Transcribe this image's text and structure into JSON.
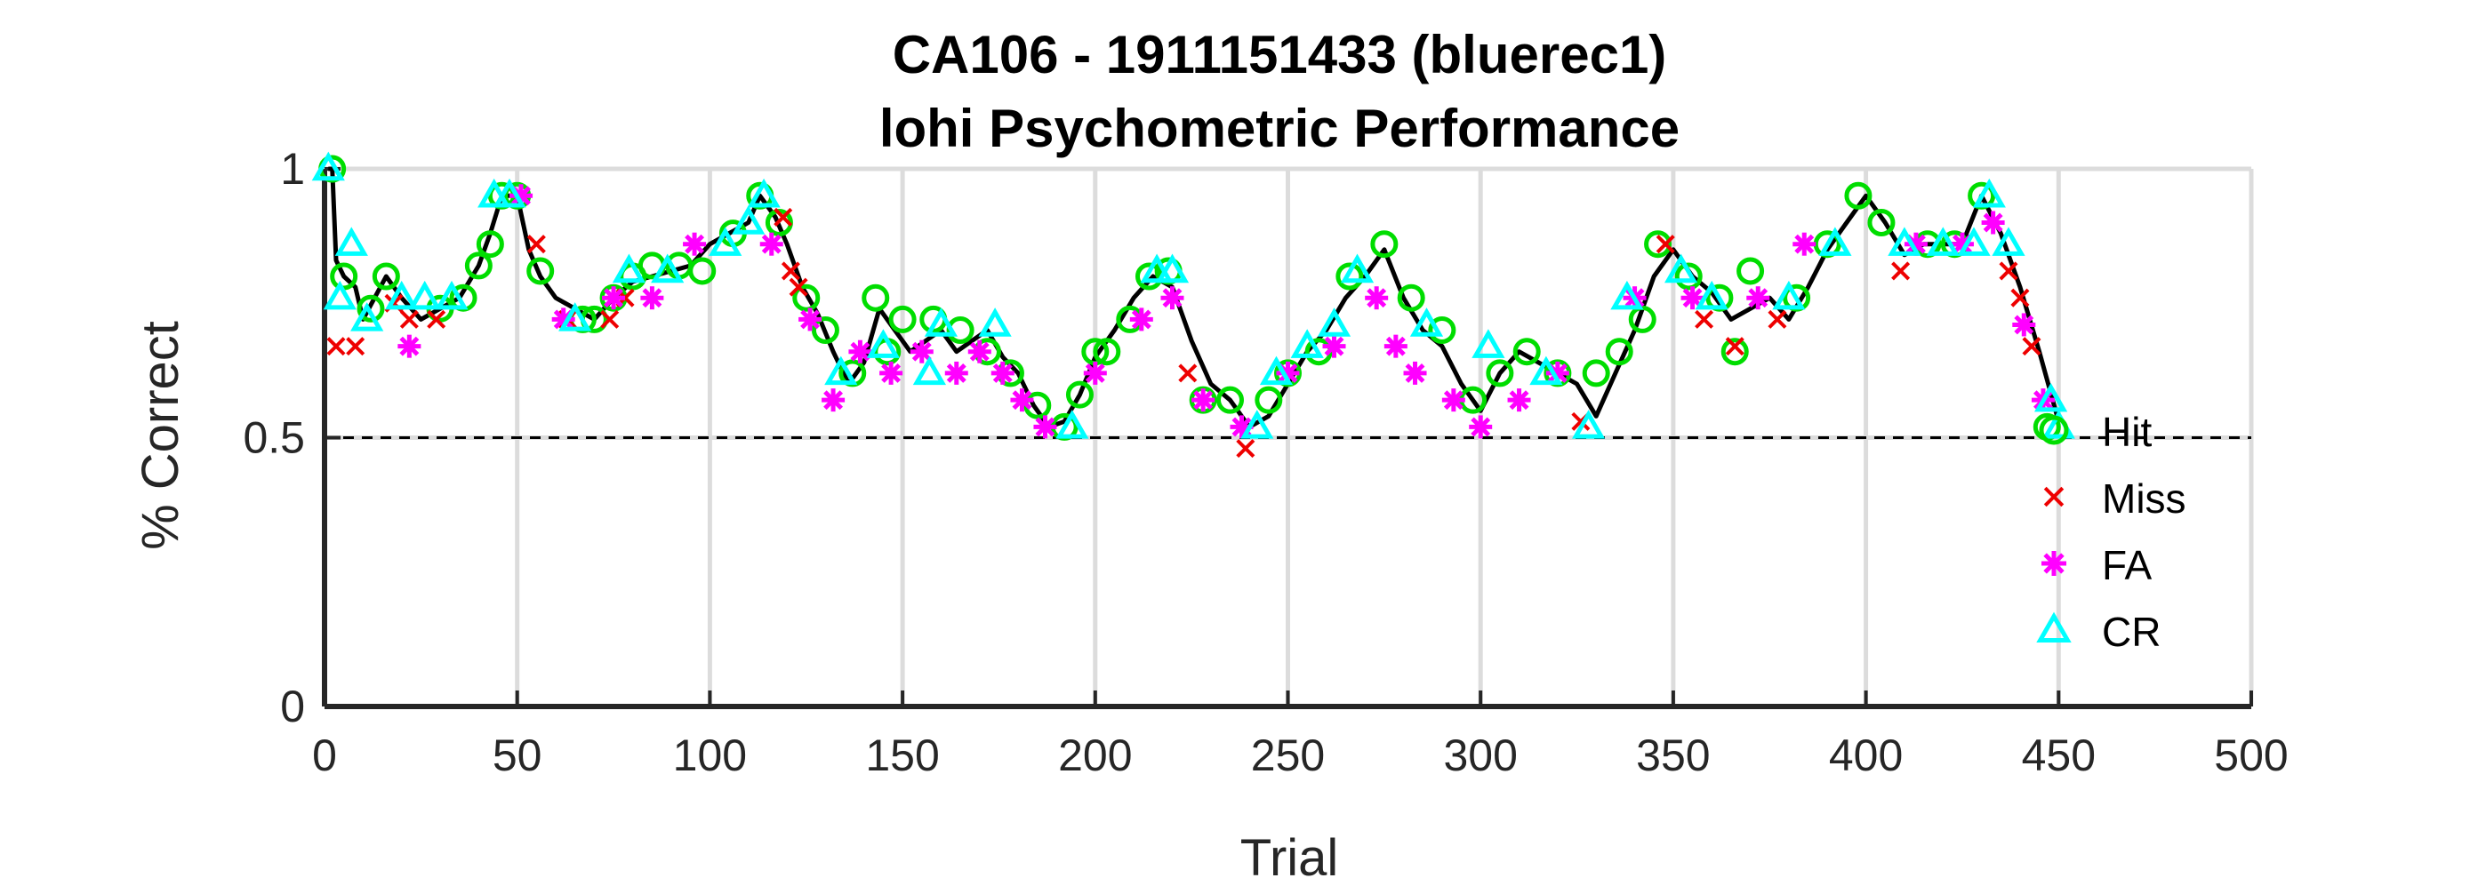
{
  "chart_data": {
    "type": "scatter",
    "title": "CA106 - 1911151433 (bluerec1)",
    "subtitle": "lohi Psychometric Performance",
    "xlabel": "Trial",
    "ylabel": "% Correct",
    "xlim": [
      0,
      500
    ],
    "ylim": [
      0,
      1
    ],
    "xticks": [
      0,
      50,
      100,
      150,
      200,
      250,
      300,
      350,
      400,
      450,
      500
    ],
    "yticks": [
      0,
      0.5,
      1
    ],
    "xtick_labels": [
      "0",
      "50",
      "100",
      "150",
      "200",
      "250",
      "300",
      "350",
      "400",
      "450",
      "500"
    ],
    "ytick_labels": [
      "0",
      "0.5",
      "1"
    ],
    "grid": true,
    "reference_line": {
      "y": 0.5,
      "style": "dashed"
    },
    "legend_position": "right",
    "colors": {
      "line": "#000000",
      "hit": "#00dd00",
      "miss": "#ee0000",
      "fa": "#ff00ff",
      "cr": "#00ffff",
      "grid": "#dcdcdc",
      "axis": "#262626"
    },
    "line": {
      "x": [
        1,
        2,
        3,
        5,
        8,
        10,
        13,
        16,
        20,
        25,
        30,
        35,
        40,
        43,
        46,
        50,
        53,
        56,
        60,
        65,
        70,
        75,
        80,
        85,
        90,
        95,
        100,
        105,
        110,
        113,
        117,
        120,
        124,
        128,
        132,
        136,
        140,
        144,
        148,
        152,
        156,
        160,
        164,
        168,
        172,
        176,
        180,
        184,
        188,
        192,
        196,
        200,
        205,
        210,
        215,
        220,
        225,
        230,
        235,
        240,
        245,
        250,
        255,
        260,
        265,
        270,
        275,
        280,
        285,
        290,
        295,
        300,
        305,
        310,
        315,
        320,
        325,
        330,
        335,
        340,
        345,
        350,
        355,
        360,
        365,
        370,
        375,
        380,
        385,
        390,
        395,
        400,
        405,
        410,
        415,
        420,
        425,
        430,
        435,
        440,
        445,
        450
      ],
      "y": [
        1.0,
        1.0,
        0.83,
        0.8,
        0.78,
        0.72,
        0.76,
        0.8,
        0.76,
        0.72,
        0.74,
        0.76,
        0.82,
        0.88,
        0.95,
        0.95,
        0.85,
        0.8,
        0.76,
        0.74,
        0.72,
        0.76,
        0.79,
        0.8,
        0.81,
        0.82,
        0.86,
        0.88,
        0.9,
        0.95,
        0.91,
        0.86,
        0.78,
        0.73,
        0.66,
        0.6,
        0.64,
        0.74,
        0.7,
        0.66,
        0.68,
        0.7,
        0.66,
        0.68,
        0.7,
        0.65,
        0.62,
        0.56,
        0.52,
        0.53,
        0.58,
        0.65,
        0.7,
        0.76,
        0.8,
        0.78,
        0.68,
        0.6,
        0.57,
        0.52,
        0.54,
        0.6,
        0.66,
        0.7,
        0.76,
        0.8,
        0.85,
        0.76,
        0.7,
        0.67,
        0.6,
        0.55,
        0.62,
        0.66,
        0.64,
        0.62,
        0.6,
        0.54,
        0.62,
        0.7,
        0.8,
        0.85,
        0.8,
        0.77,
        0.72,
        0.74,
        0.76,
        0.72,
        0.78,
        0.85,
        0.9,
        0.95,
        0.9,
        0.84,
        0.86,
        0.86,
        0.86,
        0.95,
        0.88,
        0.78,
        0.66,
        0.53
      ]
    },
    "series": [
      {
        "name": "Hit",
        "marker": "circle",
        "x": [
          2,
          5,
          12,
          16,
          30,
          36,
          40,
          43,
          46,
          50,
          56,
          67,
          70,
          75,
          80,
          85,
          92,
          98,
          106,
          113,
          118,
          125,
          130,
          137,
          143,
          146,
          150,
          158,
          165,
          172,
          178,
          185,
          192,
          196,
          200,
          203,
          209,
          214,
          219,
          228,
          235,
          245,
          250,
          258,
          266,
          275,
          282,
          290,
          298,
          305,
          312,
          320,
          330,
          336,
          342,
          346,
          354,
          362,
          366,
          370,
          382,
          390,
          398,
          404,
          416,
          423,
          430,
          447
        ],
        "y": [
          1.0,
          0.8,
          0.74,
          0.8,
          0.74,
          0.76,
          0.82,
          0.86,
          0.95,
          0.95,
          0.81,
          0.72,
          0.72,
          0.76,
          0.8,
          0.82,
          0.82,
          0.81,
          0.88,
          0.95,
          0.9,
          0.76,
          0.7,
          0.62,
          0.76,
          0.66,
          0.72,
          0.72,
          0.7,
          0.66,
          0.62,
          0.56,
          0.52,
          0.58,
          0.66,
          0.66,
          0.72,
          0.8,
          0.81,
          0.57,
          0.57,
          0.57,
          0.62,
          0.66,
          0.8,
          0.86,
          0.76,
          0.7,
          0.57,
          0.62,
          0.66,
          0.62,
          0.62,
          0.66,
          0.72,
          0.86,
          0.8,
          0.76,
          0.66,
          0.81,
          0.76,
          0.86,
          0.95,
          0.9,
          0.86,
          0.86,
          0.95,
          0.52
        ]
      },
      {
        "name": "Miss",
        "marker": "x",
        "x": [
          3,
          8,
          18,
          22,
          29,
          55,
          63,
          74,
          78,
          119,
          121,
          123,
          224,
          239,
          326,
          348,
          358,
          366,
          377,
          409,
          437,
          440,
          443
        ],
        "y": [
          0.67,
          0.67,
          0.75,
          0.72,
          0.72,
          0.86,
          0.72,
          0.72,
          0.76,
          0.91,
          0.81,
          0.78,
          0.62,
          0.48,
          0.53,
          0.86,
          0.72,
          0.67,
          0.72,
          0.81,
          0.81,
          0.76,
          0.67
        ]
      },
      {
        "name": "FA",
        "marker": "asterisk",
        "x": [
          22,
          51,
          62,
          75,
          85,
          96,
          116,
          126,
          132,
          139,
          147,
          155,
          164,
          170,
          176,
          181,
          187,
          200,
          212,
          220,
          228,
          238,
          250,
          262,
          273,
          278,
          283,
          293,
          300,
          310,
          320,
          340,
          355,
          372,
          384,
          413,
          425,
          433,
          441,
          446
        ],
        "y": [
          0.67,
          0.95,
          0.72,
          0.76,
          0.76,
          0.86,
          0.86,
          0.72,
          0.57,
          0.66,
          0.62,
          0.66,
          0.62,
          0.66,
          0.62,
          0.57,
          0.52,
          0.62,
          0.72,
          0.76,
          0.57,
          0.52,
          0.62,
          0.67,
          0.76,
          0.67,
          0.62,
          0.57,
          0.52,
          0.57,
          0.62,
          0.76,
          0.76,
          0.76,
          0.86,
          0.86,
          0.86,
          0.9,
          0.71,
          0.57
        ]
      },
      {
        "name": "CR",
        "marker": "triangle",
        "x": [
          1,
          4,
          7,
          11,
          20,
          26,
          33,
          44,
          48,
          65,
          79,
          89,
          104,
          110,
          114,
          134,
          145,
          157,
          160,
          174,
          194,
          216,
          220,
          242,
          247,
          255,
          262,
          268,
          286,
          302,
          317,
          328,
          338,
          352,
          360,
          380,
          392,
          410,
          420,
          428,
          432,
          437,
          448,
          450
        ],
        "y": [
          1.0,
          0.76,
          0.86,
          0.72,
          0.76,
          0.76,
          0.76,
          0.95,
          0.95,
          0.72,
          0.81,
          0.81,
          0.86,
          0.9,
          0.95,
          0.62,
          0.67,
          0.62,
          0.71,
          0.71,
          0.52,
          0.81,
          0.81,
          0.52,
          0.62,
          0.67,
          0.71,
          0.81,
          0.71,
          0.67,
          0.62,
          0.52,
          0.76,
          0.81,
          0.76,
          0.76,
          0.86,
          0.86,
          0.86,
          0.86,
          0.95,
          0.86,
          0.57,
          0.52
        ]
      }
    ]
  }
}
